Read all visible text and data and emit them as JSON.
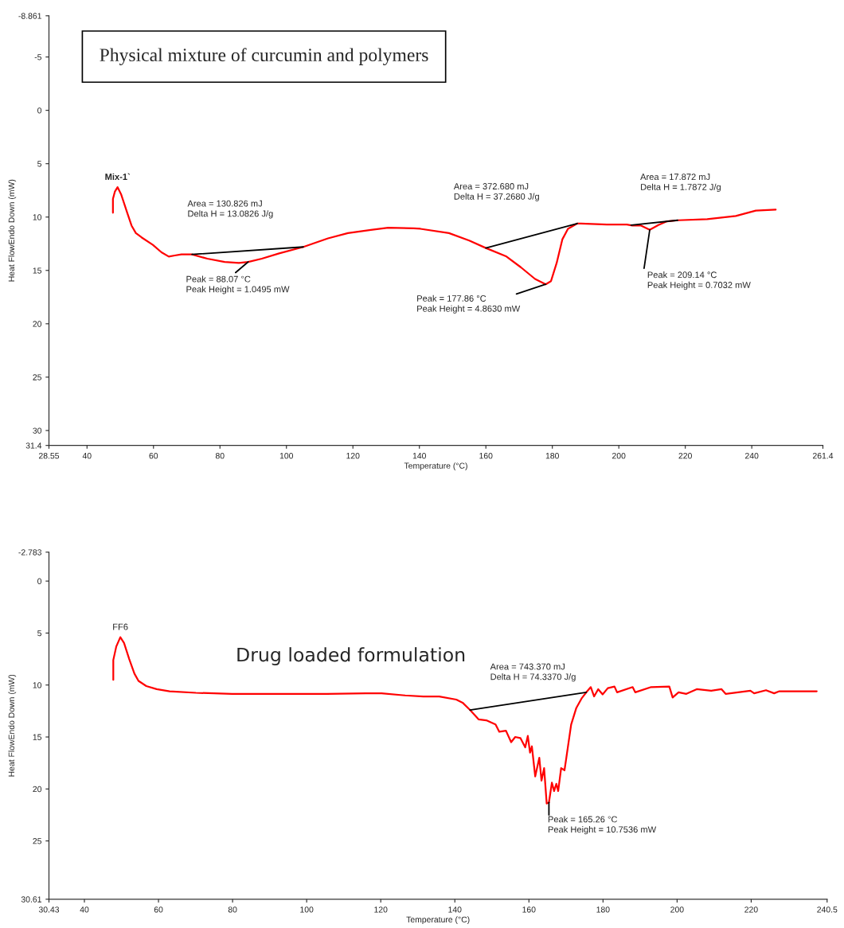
{
  "chart_data": [
    {
      "type": "line",
      "title": "Physical mixture of curcumin and polymers",
      "xlabel": "Temperature (°C)",
      "ylabel": "Heat FlowEndo Down (mW)",
      "xlim": [
        28.55,
        261.4
      ],
      "ylim": [
        31.4,
        -8.861
      ],
      "xticks": [
        28.55,
        40,
        60,
        80,
        100,
        120,
        140,
        160,
        180,
        200,
        220,
        240,
        261.4
      ],
      "yticks": [
        -8.861,
        -5,
        0,
        5,
        10,
        15,
        20,
        25,
        30,
        31.4
      ],
      "series": [
        {
          "name": "Mix-1`",
          "color": "#ff0000",
          "x": [
            47.8,
            47.8,
            48.4,
            49.2,
            50.3,
            52.1,
            53.4,
            54.7,
            56.4,
            59.8,
            62.4,
            64.6,
            66.4,
            68.4,
            71.6,
            76.2,
            81.4,
            85.7,
            88.5,
            92.6,
            97.8,
            105.1,
            112.5,
            118.5,
            125.4,
            130.6,
            138.3,
            140.3,
            148.9,
            155.0,
            160.0,
            166.2,
            170.5,
            174.8,
            178.0,
            179.6,
            181.3,
            183.0,
            184.7,
            187.5,
            188.6,
            196.4,
            202.4,
            204.1,
            206.7,
            209.3,
            211.9,
            214.5,
            217.9,
            226.6,
            235.2,
            241.2,
            247.2
          ],
          "values": [
            9.6,
            8.3,
            7.6,
            7.2,
            7.9,
            9.6,
            10.8,
            11.5,
            11.9,
            12.6,
            13.3,
            13.7,
            13.6,
            13.5,
            13.5,
            13.9,
            14.2,
            14.3,
            14.2,
            13.9,
            13.4,
            12.8,
            12.0,
            11.5,
            11.2,
            11.0,
            11.05,
            11.1,
            11.5,
            12.2,
            12.9,
            13.7,
            14.7,
            15.8,
            16.3,
            16.0,
            14.3,
            12.1,
            11.1,
            10.6,
            10.6,
            10.7,
            10.7,
            10.8,
            10.8,
            11.2,
            10.75,
            10.4,
            10.3,
            10.2,
            9.9,
            9.4,
            9.3
          ]
        },
        {
          "color": "#000000",
          "x": [
            71.6,
            105.1,
            null,
            160.0,
            187.5,
            null,
            203.7,
            217.7
          ],
          "values": [
            13.5,
            12.8,
            null,
            12.9,
            10.6,
            null,
            10.75,
            10.3
          ]
        },
        {
          "color": "#000000",
          "x": [
            88.5,
            84.7,
            null,
            178.0,
            169.2,
            null,
            209.3,
            207.6
          ],
          "values": [
            14.2,
            15.2,
            null,
            16.3,
            17.2,
            null,
            11.2,
            14.8
          ]
        }
      ],
      "annotations": [
        "Area = 130.826 mJ\nDelta H = 13.0826 J/g",
        "Peak = 88.07 °C\nPeak Height = 1.0495 mW",
        "Area = 372.680 mJ\nDelta H = 37.2680 J/g",
        "Peak = 177.86 °C\nPeak Height = 4.8630 mW",
        "Area = 17.872 mJ\nDelta H = 1.7872 J/g",
        "Peak = 209.14 °C\nPeak Height = 0.7032 mW"
      ]
    },
    {
      "type": "line",
      "title": "Drug loaded formulation",
      "xlabel": "Temperature (°C)",
      "ylabel": "Heat FlowEndo Down (mW)",
      "xlim": [
        30.43,
        240.5
      ],
      "ylim": [
        30.61,
        -2.783
      ],
      "xticks": [
        30.43,
        40,
        60,
        80,
        100,
        120,
        140,
        160,
        180,
        200,
        220,
        240.5
      ],
      "yticks": [
        -2.783,
        0,
        5,
        10,
        15,
        20,
        25,
        30.61
      ],
      "series": [
        {
          "name": "FF6",
          "color": "#ff0000",
          "x": [
            47.8,
            47.8,
            48.6,
            49.7,
            50.7,
            52.1,
            53.5,
            54.6,
            56.7,
            59.5,
            63.0,
            70.1,
            79.9,
            91.3,
            105.4,
            116.0,
            120.2,
            126.5,
            131.5,
            135.8,
            140.4,
            142.1,
            144.1,
            146.4,
            148.5,
            150.99,
            152.0,
            153.8,
            155.2,
            156.3,
            157.7,
            159.0,
            159.7,
            160.3,
            160.8,
            161.7,
            162.8,
            163.4,
            164.1,
            164.8,
            165.4,
            166.2,
            166.8,
            167.4,
            167.9,
            168.7,
            169.6,
            170.1,
            171.4,
            172.8,
            174.2,
            175.5,
            176.7,
            177.6,
            178.7,
            179.9,
            181.3,
            183.1,
            183.8,
            188.0,
            188.7,
            193.0,
            197.9,
            198.8,
            200.4,
            202.5,
            205.3,
            209.2,
            212.0,
            213.1,
            219.8,
            220.8,
            224.0,
            226.2,
            227.6,
            233.9,
            237.7
          ],
          "values": [
            9.5,
            7.6,
            6.3,
            5.4,
            5.95,
            7.5,
            8.9,
            9.6,
            10.1,
            10.4,
            10.6,
            10.75,
            10.85,
            10.85,
            10.85,
            10.8,
            10.8,
            11.0,
            11.1,
            11.1,
            11.4,
            11.7,
            12.4,
            13.3,
            13.4,
            13.8,
            14.5,
            14.4,
            15.5,
            15.0,
            15.1,
            16.0,
            14.9,
            16.5,
            15.9,
            18.8,
            17.0,
            19.2,
            18.0,
            21.4,
            21.3,
            19.4,
            20.2,
            19.5,
            20.2,
            18.0,
            18.2,
            17.0,
            13.8,
            12.2,
            11.3,
            10.7,
            10.2,
            11.1,
            10.4,
            10.9,
            10.3,
            10.15,
            10.7,
            10.2,
            10.7,
            10.2,
            10.15,
            11.2,
            10.7,
            10.85,
            10.4,
            10.55,
            10.4,
            10.85,
            10.55,
            10.8,
            10.5,
            10.8,
            10.6,
            10.6,
            10.6
          ]
        },
        {
          "color": "#000000",
          "x": [
            144.1,
            175.5
          ],
          "values": [
            12.4,
            10.7
          ]
        },
        {
          "color": "#000000",
          "x": [
            165.4,
            165.4
          ],
          "values": [
            21.3,
            22.5
          ]
        }
      ],
      "annotations": [
        "Area = 743.370 mJ\nDelta H = 74.3370 J/g",
        "Peak = 165.26 °C\nPeak Height = 10.7536 mW"
      ]
    }
  ]
}
